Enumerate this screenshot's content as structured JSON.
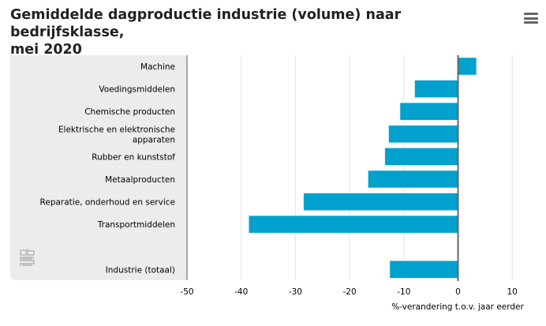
{
  "title": "Gemiddelde dagproductie industrie (volume) naar bedrijfsklasse, mei 2020",
  "title_lines": [
    "Gemiddelde dagproductie industrie (volume) naar bedrijfsklasse,",
    "mei 2020"
  ],
  "menu_icon": "hamburger-icon",
  "logo_text": "cbs",
  "colors": {
    "bar": "#00a1cd",
    "panel": "#ececec",
    "grid": "#e2e2e2",
    "axis": "#666666"
  },
  "chart_data": {
    "type": "bar",
    "orientation": "horizontal",
    "categories": [
      {
        "label": [
          "Machine"
        ],
        "value": 3.4
      },
      {
        "label": [
          "Voedingsmiddelen"
        ],
        "value": -8.0
      },
      {
        "label": [
          "Chemische producten"
        ],
        "value": -10.7
      },
      {
        "label": [
          "Elektrische en elektronische",
          "apparaten"
        ],
        "value": -12.8
      },
      {
        "label": [
          "Rubber en kunststof"
        ],
        "value": -13.5
      },
      {
        "label": [
          "Metaalproducten"
        ],
        "value": -16.6
      },
      {
        "label": [
          "Reparatie, onderhoud en service"
        ],
        "value": -28.5
      },
      {
        "label": [
          "Transportmiddelen"
        ],
        "value": -38.6
      },
      null,
      {
        "label": [
          "Industrie (totaal)"
        ],
        "value": -12.6
      }
    ],
    "xlabel": "%-verandering t.o.v. jaar eerder",
    "xlim": [
      -50,
      12
    ],
    "xticks": [
      -50,
      -40,
      -30,
      -20,
      -10,
      0,
      10
    ],
    "grid": true
  }
}
